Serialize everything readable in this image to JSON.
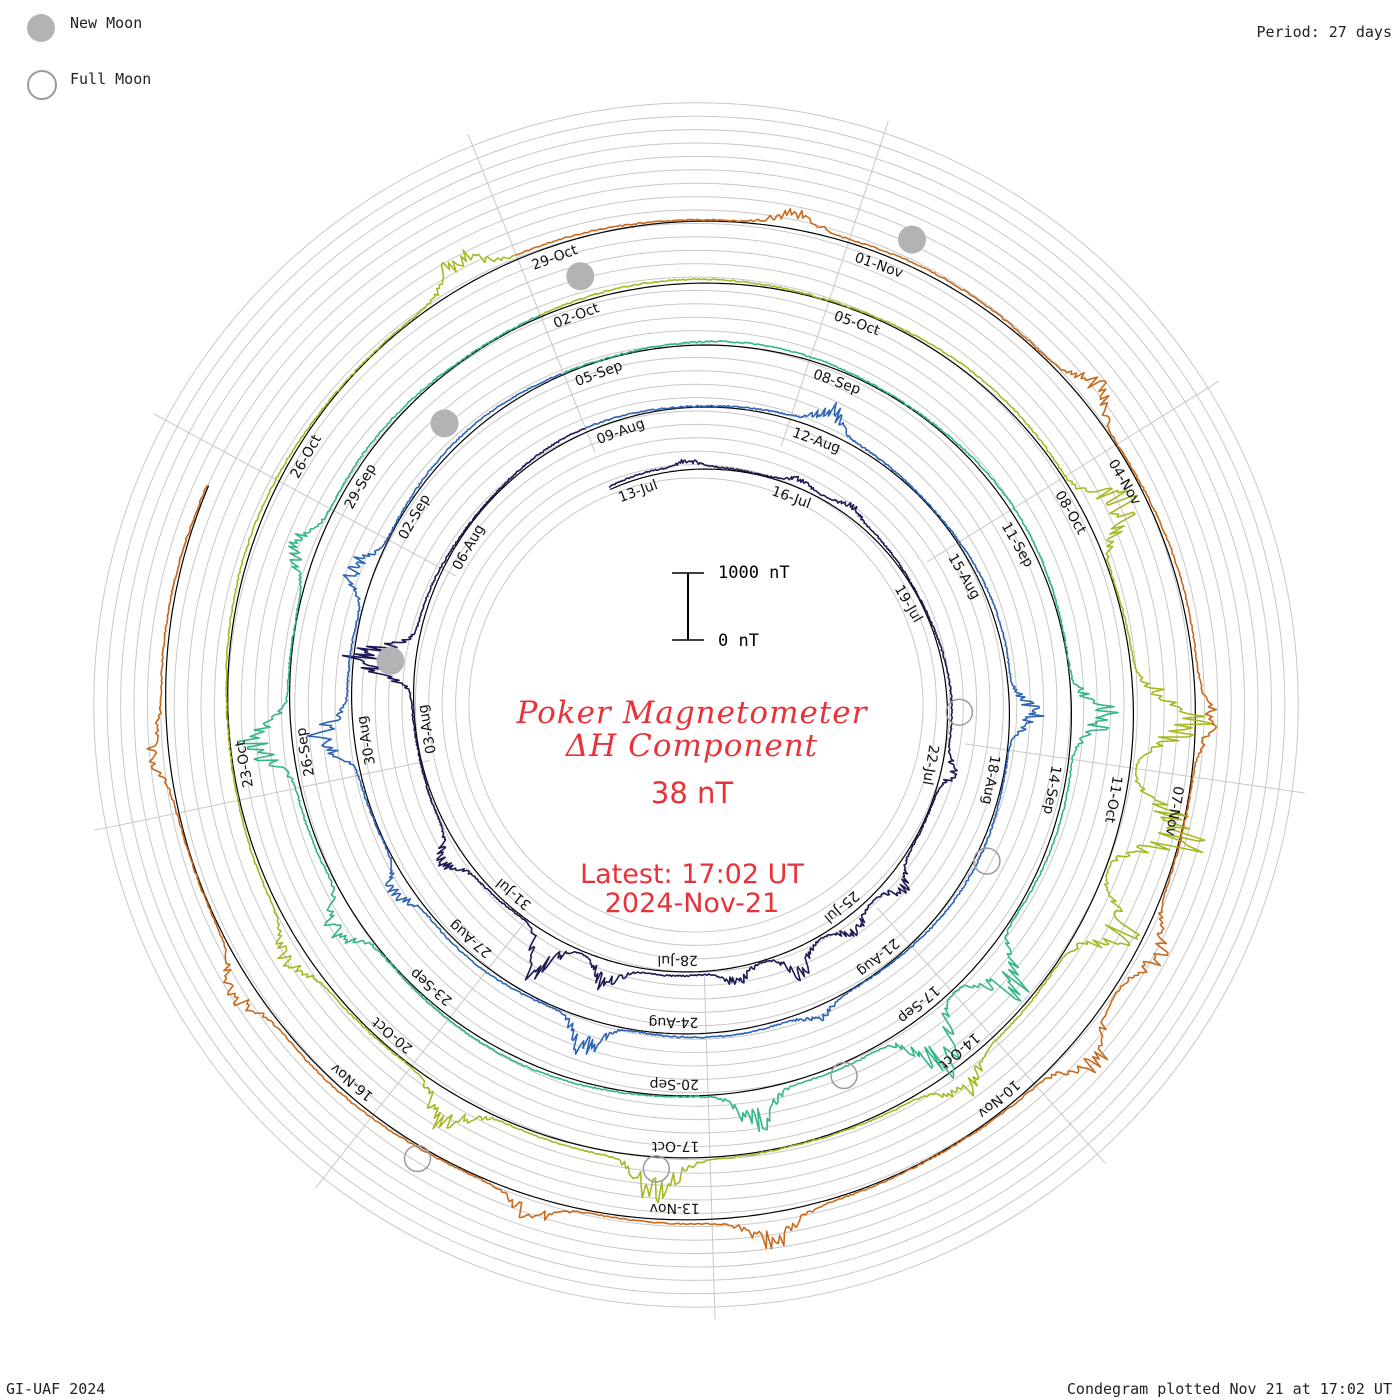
{
  "legend": {
    "new_moon_label": "New Moon",
    "full_moon_label": "Full Moon",
    "new_moon_color": "#b3b3b3",
    "full_moon_color": "#9b9b9b"
  },
  "period_label": "Period: 27 days",
  "footer": {
    "credit": "GI-UAF 2024",
    "plotted": "Condegram plotted Nov 21 at 17:02 UT"
  },
  "center": {
    "title_line1": "Poker Magnetometer",
    "title_line2": "ΔH Component",
    "value": "38 nT",
    "latest_line1": "Latest: 17:02 UT",
    "latest_line2": "2024-Nov-21"
  },
  "scale": {
    "top_label": "1000 nT",
    "bottom_label": "0 nT",
    "top_value_nT": 1000,
    "bottom_value_nT": 0
  },
  "chart_data": {
    "type": "line",
    "subtype": "condegram (spiral time-series, 27-day rotation per turn)",
    "title": "Poker Magnetometer ΔH Component",
    "current_value": "38 nT",
    "latest": "17:02 UT 2024-Nov-21",
    "period_days": 27,
    "start_date": "2024-07-13",
    "end_date": "2024-11-21",
    "units": "nT",
    "date_labels": [
      "13-Jul",
      "16-Jul",
      "19-Jul",
      "22-Jul",
      "25-Jul",
      "28-Jul",
      "31-Jul",
      "03-Aug",
      "06-Aug",
      "09-Aug",
      "12-Aug",
      "15-Aug",
      "18-Aug",
      "21-Aug",
      "24-Aug",
      "27-Aug",
      "30-Aug",
      "02-Sep",
      "05-Sep",
      "08-Sep",
      "11-Sep",
      "14-Sep",
      "17-Sep",
      "20-Sep",
      "23-Sep",
      "26-Sep",
      "29-Sep",
      "02-Oct",
      "05-Oct",
      "08-Oct",
      "11-Oct",
      "14-Oct",
      "17-Oct",
      "20-Oct",
      "23-Oct",
      "26-Oct",
      "29-Oct",
      "01-Nov",
      "04-Nov",
      "07-Nov",
      "10-Nov",
      "13-Nov",
      "16-Nov"
    ],
    "new_moons": [
      "2024-08-04",
      "2024-09-03",
      "2024-10-02",
      "2024-11-01"
    ],
    "full_moons": [
      "2024-07-21",
      "2024-08-19",
      "2024-09-18",
      "2024-10-17",
      "2024-11-15"
    ],
    "activity_days": [
      {
        "date": "2024-07-14",
        "peak_nT": 120
      },
      {
        "date": "2024-07-16",
        "peak_nT": 150
      },
      {
        "date": "2024-07-17",
        "peak_nT": 150
      },
      {
        "date": "2024-07-22",
        "peak_nT": 220
      },
      {
        "date": "2024-07-24",
        "peak_nT": 320
      },
      {
        "date": "2024-07-25",
        "peak_nT": 300
      },
      {
        "date": "2024-07-26",
        "peak_nT": 520
      },
      {
        "date": "2024-07-27",
        "peak_nT": 280
      },
      {
        "date": "2024-07-29",
        "peak_nT": 450
      },
      {
        "date": "2024-07-30",
        "peak_nT": 750
      },
      {
        "date": "2024-08-01",
        "peak_nT": 380
      },
      {
        "date": "2024-08-04",
        "peak_nT": 1100
      },
      {
        "date": "2024-08-12",
        "peak_nT": 400
      },
      {
        "date": "2024-08-17",
        "peak_nT": 500
      },
      {
        "date": "2024-08-22",
        "peak_nT": 200
      },
      {
        "date": "2024-08-25",
        "peak_nT": 600
      },
      {
        "date": "2024-08-28",
        "peak_nT": 350
      },
      {
        "date": "2024-08-30",
        "peak_nT": 700
      },
      {
        "date": "2024-09-01",
        "peak_nT": 500
      },
      {
        "date": "2024-09-13",
        "peak_nT": 750
      },
      {
        "date": "2024-09-16",
        "peak_nT": 900
      },
      {
        "date": "2024-09-17",
        "peak_nT": 1100
      },
      {
        "date": "2024-09-19",
        "peak_nT": 650
      },
      {
        "date": "2024-09-24",
        "peak_nT": 600
      },
      {
        "date": "2024-09-26",
        "peak_nT": 800
      },
      {
        "date": "2024-09-28",
        "peak_nT": 450
      },
      {
        "date": "2024-10-08",
        "peak_nT": 950
      },
      {
        "date": "2024-10-10",
        "peak_nT": 1300
      },
      {
        "date": "2024-10-11",
        "peak_nT": 1500
      },
      {
        "date": "2024-10-12",
        "peak_nT": 900
      },
      {
        "date": "2024-10-14",
        "peak_nT": 450
      },
      {
        "date": "2024-10-17",
        "peak_nT": 700
      },
      {
        "date": "2024-10-19",
        "peak_nT": 650
      },
      {
        "date": "2024-10-21",
        "peak_nT": 350
      },
      {
        "date": "2024-10-28",
        "peak_nT": 500
      },
      {
        "date": "2024-10-31",
        "peak_nT": 300
      },
      {
        "date": "2024-11-03",
        "peak_nT": 450
      },
      {
        "date": "2024-11-06",
        "peak_nT": 320
      },
      {
        "date": "2024-11-08",
        "peak_nT": 400
      },
      {
        "date": "2024-11-09",
        "peak_nT": 550
      },
      {
        "date": "2024-11-12",
        "peak_nT": 500
      },
      {
        "date": "2024-11-14",
        "peak_nT": 380
      },
      {
        "date": "2024-11-17",
        "peak_nT": 420
      },
      {
        "date": "2024-11-19",
        "peak_nT": 300
      }
    ],
    "rotation_colors": [
      "#1c1a55",
      "#2b2199",
      "#2e64b4",
      "#2fa2b4",
      "#35b58a",
      "#5cbd3a",
      "#a7b825",
      "#c9a11f",
      "#c86a1e",
      "#be1e16"
    ]
  }
}
